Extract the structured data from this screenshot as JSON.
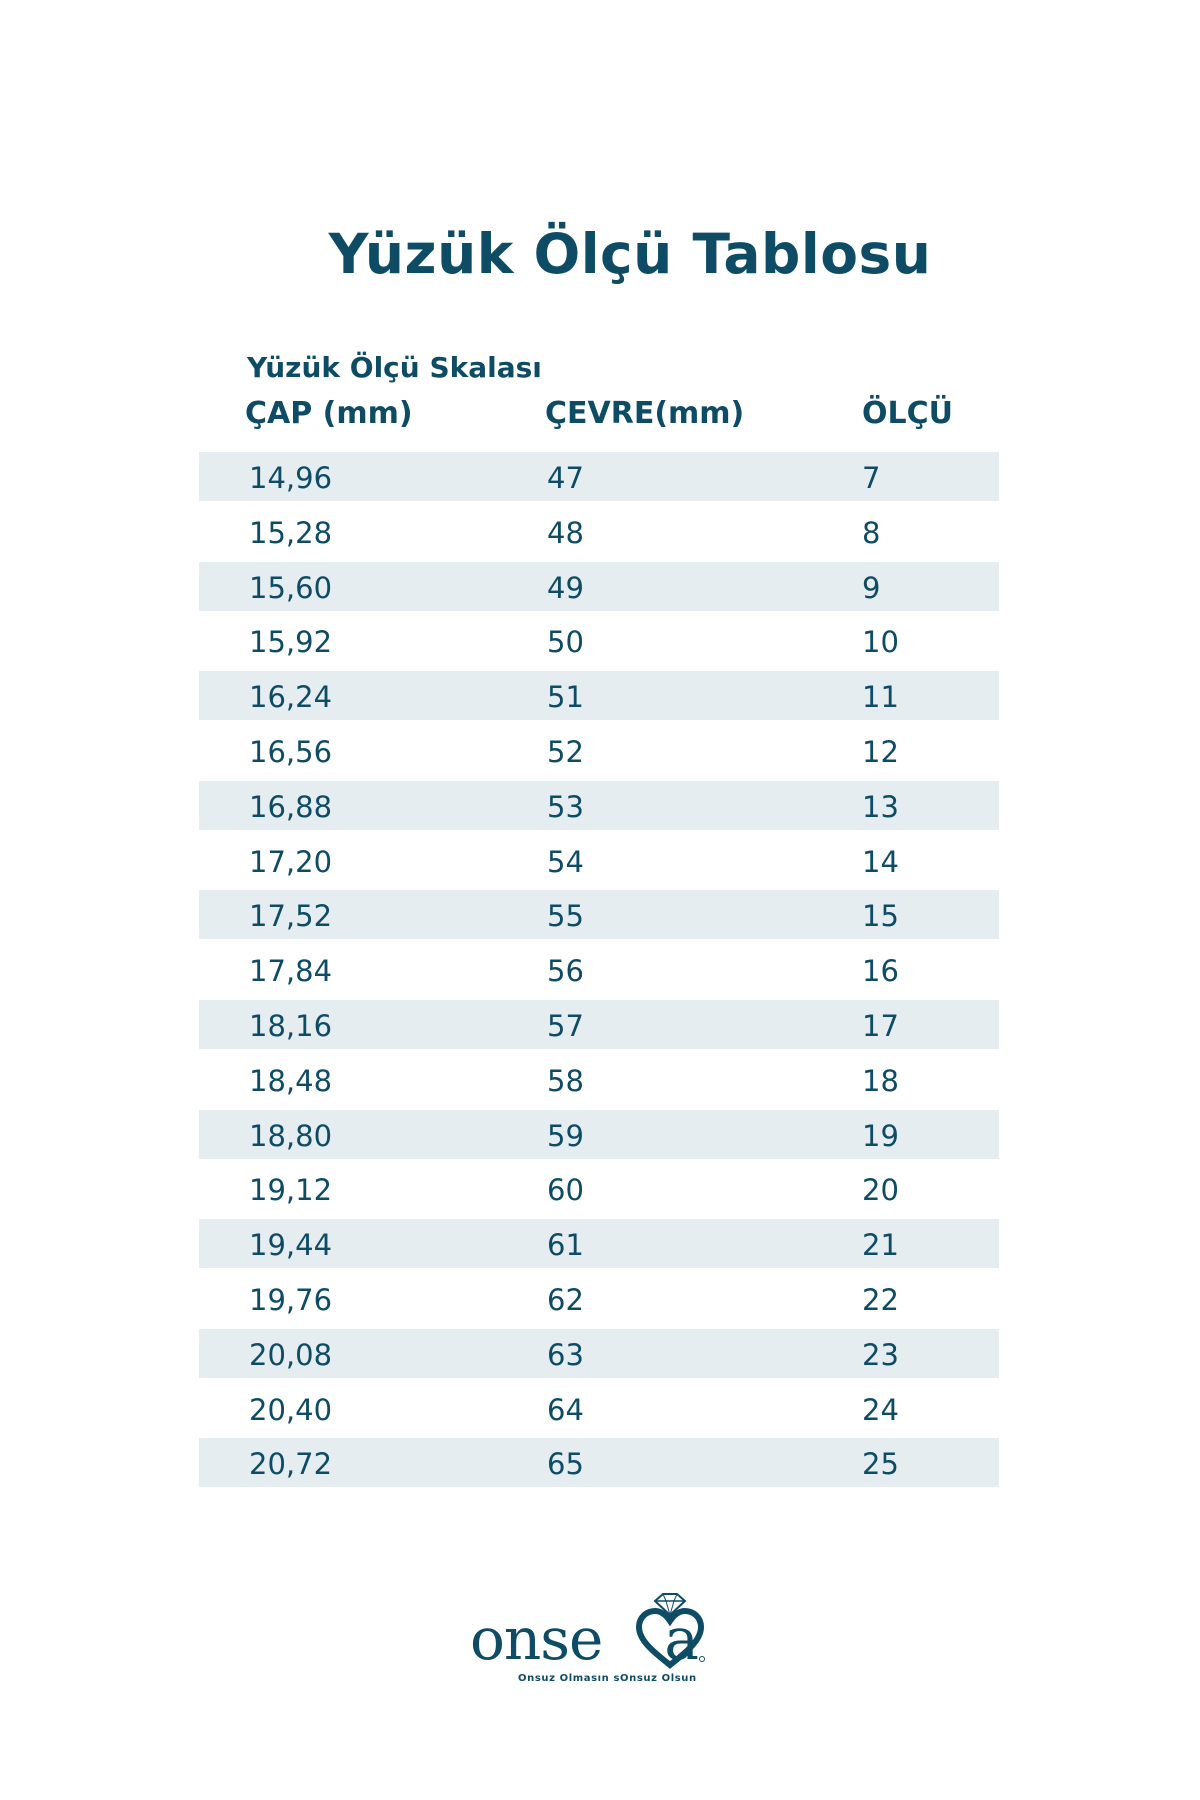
{
  "title": "Yüzük Ölçü Tablosu",
  "subtitle": "Yüzük Ölçü Skalası",
  "columns": {
    "cap": "ÇAP (mm)",
    "cevre": "ÇEVRE(mm)",
    "olcu": "ÖLÇÜ"
  },
  "rows": [
    {
      "cap": "14,96",
      "cevre": "47",
      "olcu": "7"
    },
    {
      "cap": "15,28",
      "cevre": "48",
      "olcu": "8"
    },
    {
      "cap": "15,60",
      "cevre": "49",
      "olcu": "9"
    },
    {
      "cap": "15,92",
      "cevre": "50",
      "olcu": "10"
    },
    {
      "cap": "16,24",
      "cevre": "51",
      "olcu": "11"
    },
    {
      "cap": "16,56",
      "cevre": "52",
      "olcu": "12"
    },
    {
      "cap": "16,88",
      "cevre": "53",
      "olcu": "13"
    },
    {
      "cap": "17,20",
      "cevre": "54",
      "olcu": "14"
    },
    {
      "cap": "17,52",
      "cevre": "55",
      "olcu": "15"
    },
    {
      "cap": "17,84",
      "cevre": "56",
      "olcu": "16"
    },
    {
      "cap": "18,16",
      "cevre": "57",
      "olcu": "17"
    },
    {
      "cap": "18,48",
      "cevre": "58",
      "olcu": "18"
    },
    {
      "cap": "18,80",
      "cevre": "59",
      "olcu": "19"
    },
    {
      "cap": "19,12",
      "cevre": "60",
      "olcu": "20"
    },
    {
      "cap": "19,44",
      "cevre": "61",
      "olcu": "21"
    },
    {
      "cap": "19,76",
      "cevre": "62",
      "olcu": "22"
    },
    {
      "cap": "20,08",
      "cevre": "63",
      "olcu": "23"
    },
    {
      "cap": "20,40",
      "cevre": "64",
      "olcu": "24"
    },
    {
      "cap": "20,72",
      "cevre": "65",
      "olcu": "25"
    }
  ],
  "logo": {
    "word": "onseva",
    "tagline": "Onsuz Olmasın sOnsuz Olsun",
    "icon": "diamond-heart-icon"
  },
  "colors": {
    "text": "#0e4c66",
    "row_band": "#e6edf1",
    "background": "#ffffff"
  }
}
